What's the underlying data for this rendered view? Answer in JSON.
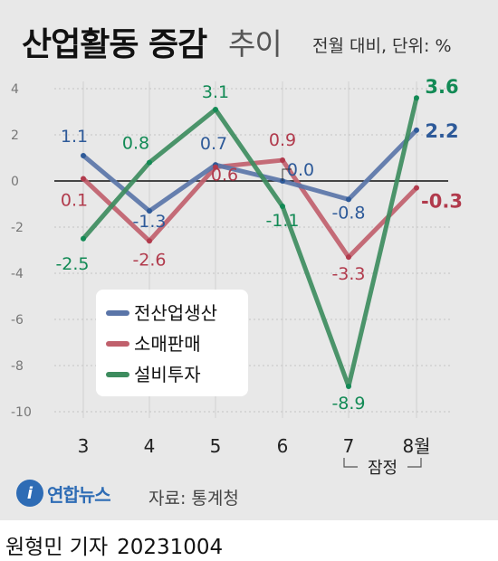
{
  "header": {
    "title": "산업활동 증감",
    "subtitle": "추이",
    "unit": "전월 대비, 단위: %"
  },
  "chart_data": {
    "type": "line",
    "categories": [
      "3",
      "4",
      "5",
      "6",
      "7",
      "8월"
    ],
    "ylim": [
      -10,
      4
    ],
    "yticks": [
      4,
      2,
      0,
      -2,
      -4,
      -6,
      -8,
      -10
    ],
    "grid": true,
    "legend_position": "bottom-left",
    "provisional_label": "잠정",
    "series": [
      {
        "name": "전산업생산",
        "color": "#5a75a8",
        "values": [
          1.1,
          -1.3,
          0.7,
          0.0,
          -0.8,
          2.2
        ],
        "labels": [
          "1.1",
          "-1.3",
          "0.7",
          "0.0",
          "-0.8",
          "2.2"
        ]
      },
      {
        "name": "소매판매",
        "color": "#c0606c",
        "values": [
          0.1,
          -2.6,
          0.6,
          0.9,
          -3.3,
          -0.3
        ],
        "labels": [
          "0.1",
          "-2.6",
          "0.6",
          "0.9",
          "-3.3",
          "-0.3"
        ]
      },
      {
        "name": "설비투자",
        "color": "#3d8c5e",
        "values": [
          -2.5,
          0.8,
          3.1,
          -1.1,
          -8.9,
          3.6
        ],
        "labels": [
          "-2.5",
          "0.8",
          "3.1",
          "-1.1",
          "-8.9",
          "3.6"
        ]
      }
    ],
    "label_colors": [
      "#2e5a99",
      "#b13a4c",
      "#128a55"
    ]
  },
  "footer": {
    "logo_text": "연합뉴스",
    "logo_mark": "i",
    "source": "자료: 통계청",
    "author": "원형민 기자",
    "date": "20231004"
  }
}
